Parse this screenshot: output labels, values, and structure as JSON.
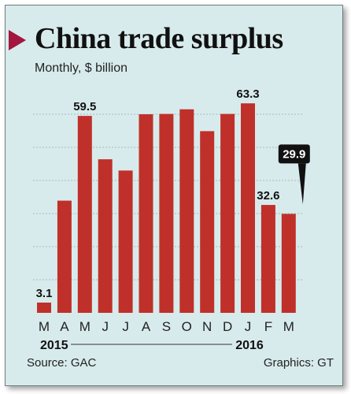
{
  "title": "China trade surplus",
  "subtitle": "Monthly, $ billion",
  "source": "Source: GAC",
  "credit": "Graphics: GT",
  "colors": {
    "bar": "#c0302a",
    "accent": "#a3163f",
    "background": "#d8ebec",
    "grid": "#9aa6a8"
  },
  "chart_data": {
    "type": "bar",
    "title": "China trade surplus",
    "subtitle": "Monthly, $ billion",
    "categories": [
      "M",
      "A",
      "M",
      "J",
      "J",
      "A",
      "S",
      "O",
      "N",
      "D",
      "J",
      "F",
      "M"
    ],
    "values": [
      3.1,
      33.9,
      59.5,
      46.4,
      43.0,
      60.0,
      60.1,
      61.5,
      54.9,
      60.1,
      63.3,
      32.6,
      29.9
    ],
    "data_labels": [
      {
        "index": 0,
        "text": "3.1"
      },
      {
        "index": 2,
        "text": "59.5"
      },
      {
        "index": 10,
        "text": "63.3"
      },
      {
        "index": 11,
        "text": "32.6"
      },
      {
        "index": 12,
        "text": "29.9",
        "callout": true
      }
    ],
    "year_labels": [
      {
        "index": 0,
        "text": "2015"
      },
      {
        "index": 10,
        "text": "2016"
      }
    ],
    "ylim": [
      0,
      70
    ],
    "gridlines": [
      10,
      20,
      30,
      40,
      50,
      60
    ],
    "grid": true,
    "xlabel": "",
    "ylabel": ""
  }
}
